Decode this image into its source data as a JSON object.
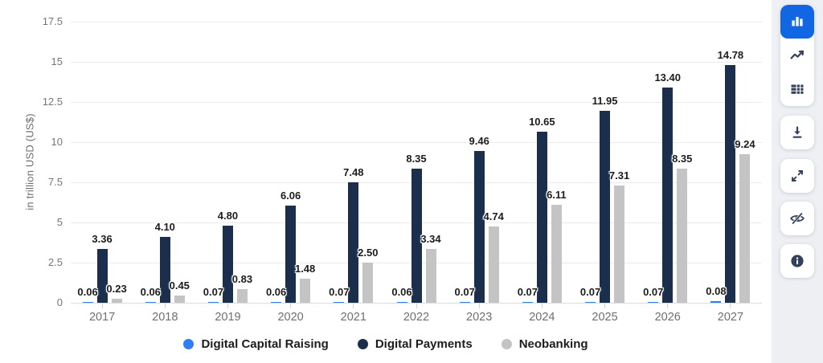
{
  "chart_data": {
    "type": "bar",
    "title": "",
    "ylabel": "in trillion USD (US$)",
    "xlabel": "",
    "ylim": [
      0,
      17.5
    ],
    "yticks": [
      0,
      2.5,
      5,
      7.5,
      10,
      12.5,
      15,
      17.5
    ],
    "grid": true,
    "legend_position": "bottom",
    "value_label_decimals": 2,
    "categories": [
      "2017",
      "2018",
      "2019",
      "2020",
      "2021",
      "2022",
      "2023",
      "2024",
      "2025",
      "2026",
      "2027"
    ],
    "series": [
      {
        "name": "Digital Capital Raising",
        "color": "#2e7df2",
        "values": [
          0.06,
          0.06,
          0.07,
          0.06,
          0.07,
          0.06,
          0.07,
          0.07,
          0.07,
          0.07,
          0.08
        ]
      },
      {
        "name": "Digital Payments",
        "color": "#1b2f4d",
        "values": [
          3.36,
          4.1,
          4.8,
          6.06,
          7.48,
          8.35,
          9.46,
          10.65,
          11.95,
          13.4,
          14.78
        ]
      },
      {
        "name": "Neobanking",
        "color": "#c4c4c4",
        "values": [
          0.23,
          0.45,
          0.83,
          1.48,
          2.5,
          3.34,
          4.74,
          6.11,
          7.31,
          8.35,
          9.24
        ]
      }
    ]
  },
  "toolbar": {
    "accent_color": "#1266e3",
    "icon_color": "#33415c",
    "buttons": [
      {
        "id": "bar-chart",
        "selected": true
      },
      {
        "id": "line-chart",
        "selected": false
      },
      {
        "id": "table-view",
        "selected": false
      },
      {
        "id": "download",
        "selected": false
      },
      {
        "id": "fullscreen",
        "selected": false
      },
      {
        "id": "hide-values",
        "selected": false
      },
      {
        "id": "info",
        "selected": false
      }
    ]
  }
}
